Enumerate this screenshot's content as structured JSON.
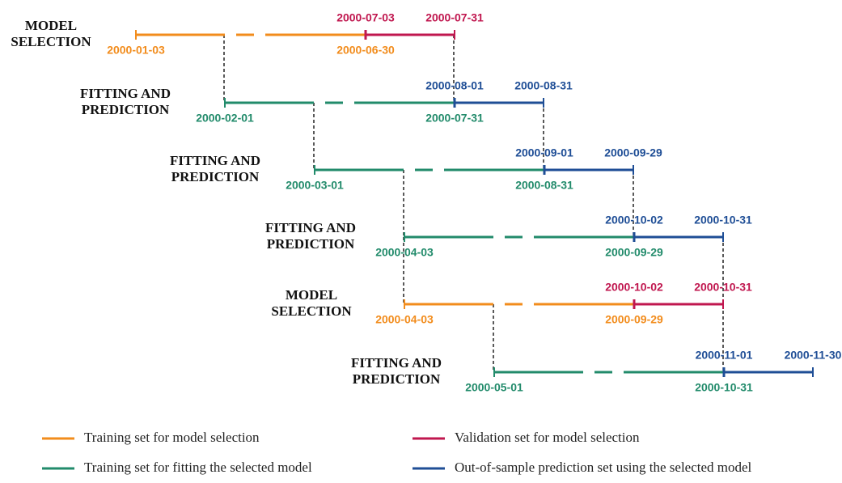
{
  "rows": [
    {
      "label": [
        "MODEL",
        "SELECTION"
      ],
      "train_start": "2000-01-03",
      "train_end": "2000-06-30",
      "test_start": "2000-07-03",
      "test_end": "2000-07-31",
      "train_color": "#f28c1c",
      "test_color": "#c0174f"
    },
    {
      "label": [
        "FITTING AND",
        "PREDICTION"
      ],
      "train_start": "2000-02-01",
      "train_end": "2000-07-31",
      "test_start": "2000-08-01",
      "test_end": "2000-08-31",
      "train_color": "#228b6b",
      "test_color": "#1f4e96"
    },
    {
      "label": [
        "FITTING AND",
        "PREDICTION"
      ],
      "train_start": "2000-03-01",
      "train_end": "2000-08-31",
      "test_start": "2000-09-01",
      "test_end": "2000-09-29",
      "train_color": "#228b6b",
      "test_color": "#1f4e96"
    },
    {
      "label": [
        "FITTING AND",
        "PREDICTION"
      ],
      "train_start": "2000-04-03",
      "train_end": "2000-09-29",
      "test_start": "2000-10-02",
      "test_end": "2000-10-31",
      "train_color": "#228b6b",
      "test_color": "#1f4e96"
    },
    {
      "label": [
        "MODEL",
        "SELECTION"
      ],
      "train_start": "2000-04-03",
      "train_end": "2000-09-29",
      "test_start": "2000-10-02",
      "test_end": "2000-10-31",
      "train_color": "#f28c1c",
      "test_color": "#c0174f"
    },
    {
      "label": [
        "FITTING AND",
        "PREDICTION"
      ],
      "train_start": "2000-05-01",
      "train_end": "2000-10-31",
      "test_start": "2000-11-01",
      "test_end": "2000-11-30",
      "train_color": "#228b6b",
      "test_color": "#1f4e96"
    }
  ],
  "legend": [
    {
      "label": "Training set for model selection",
      "color": "#f28c1c"
    },
    {
      "label": "Validation set for model selection",
      "color": "#c0174f"
    },
    {
      "label": "Training set for fitting the selected model",
      "color": "#228b6b"
    },
    {
      "label": "Out-of-sample prediction set using the selected model",
      "color": "#1f4e96"
    }
  ]
}
